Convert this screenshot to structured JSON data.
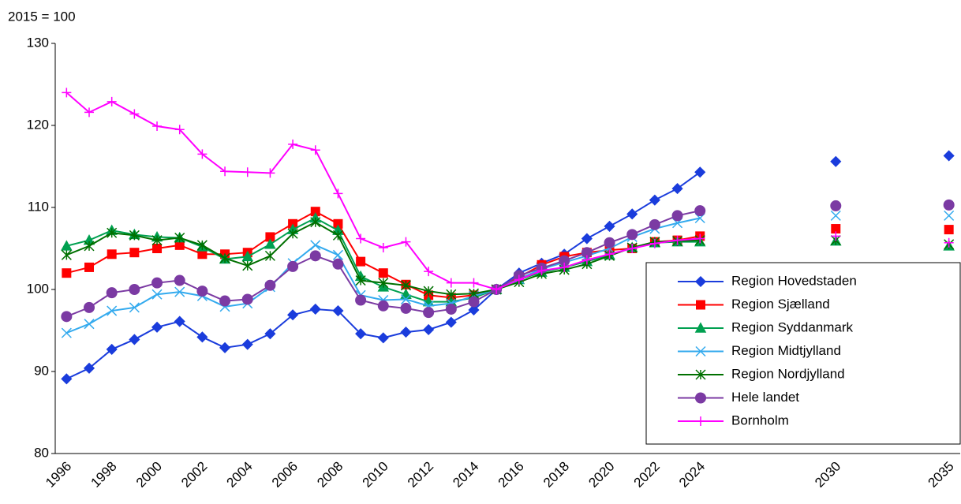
{
  "chart_data": {
    "type": "line",
    "ylabel": "2015 = 100",
    "categories": [
      "1996",
      null,
      "1998",
      null,
      "2000",
      null,
      "2002",
      null,
      "2004",
      null,
      "2006",
      null,
      "2008",
      null,
      "2010",
      null,
      "2012",
      null,
      "2014",
      null,
      "2016",
      null,
      "2018",
      null,
      "2020",
      null,
      "2022",
      null,
      "2024",
      null,
      null,
      null,
      null,
      null,
      "2030",
      null,
      null,
      null,
      null,
      "2035"
    ],
    "ylim": [
      80,
      130
    ],
    "yticks": [
      80,
      90,
      100,
      110,
      120,
      130
    ],
    "grid": false,
    "legend": "lower right",
    "series": [
      {
        "name": "Region Hovedstaden",
        "color": "#1a3cdc",
        "marker": "diamond",
        "values": [
          89.1,
          90.4,
          92.7,
          93.9,
          95.4,
          96.1,
          94.2,
          92.9,
          93.3,
          94.6,
          96.9,
          97.6,
          97.4,
          94.6,
          94.1,
          94.8,
          95.1,
          96.0,
          97.5,
          100,
          102.0,
          103.2,
          104.3,
          106.2,
          107.7,
          109.2,
          110.9,
          112.3,
          114.3,
          null,
          null,
          null,
          null,
          null,
          115.6,
          null,
          null,
          null,
          null,
          116.3
        ]
      },
      {
        "name": "Region Sjælland",
        "color": "#ff0000",
        "marker": "square",
        "values": [
          102.0,
          102.7,
          104.3,
          104.5,
          105.0,
          105.4,
          104.3,
          104.3,
          104.5,
          106.4,
          108.0,
          109.5,
          108.0,
          103.4,
          102.0,
          100.6,
          99.3,
          99.0,
          99.3,
          100,
          101.5,
          103.0,
          104.0,
          104.5,
          104.8,
          105.0,
          105.8,
          106.0,
          106.5,
          null,
          null,
          null,
          null,
          null,
          107.4,
          null,
          null,
          null,
          null,
          107.3
        ]
      },
      {
        "name": "Region Syddanmark",
        "color": "#00a050",
        "marker": "triangle",
        "values": [
          105.3,
          106.0,
          107.2,
          106.7,
          106.4,
          106.3,
          105.2,
          103.7,
          104.0,
          105.5,
          107.3,
          108.7,
          107.2,
          101.6,
          100.3,
          99.4,
          98.5,
          98.5,
          99.0,
          100,
          101.2,
          102.1,
          102.7,
          103.4,
          104.2,
          105.1,
          105.7,
          105.8,
          105.8,
          null,
          null,
          null,
          null,
          null,
          105.9,
          null,
          null,
          null,
          null,
          105.3
        ]
      },
      {
        "name": "Region Midtjylland",
        "color": "#33aaee",
        "marker": "x",
        "values": [
          94.7,
          95.8,
          97.4,
          97.8,
          99.4,
          99.7,
          99.2,
          97.9,
          98.3,
          100.3,
          103.2,
          105.4,
          104.2,
          99.3,
          98.7,
          98.8,
          98.0,
          98.3,
          99.2,
          100,
          101.3,
          102.5,
          103.3,
          104.1,
          105.0,
          106.4,
          107.4,
          108.1,
          108.7,
          null,
          null,
          null,
          null,
          null,
          109.0,
          null,
          null,
          null,
          null,
          109.0
        ]
      },
      {
        "name": "Region Nordjylland",
        "color": "#007000",
        "marker": "star",
        "values": [
          104.2,
          105.3,
          106.9,
          106.6,
          106.0,
          106.3,
          105.4,
          103.8,
          102.9,
          104.1,
          106.8,
          108.2,
          106.6,
          101.1,
          100.8,
          100.5,
          99.8,
          99.4,
          99.5,
          100,
          100.9,
          101.9,
          102.4,
          103.1,
          104.1,
          105.1,
          105.8,
          105.9,
          106.0,
          null,
          null,
          null,
          null,
          null,
          106.0,
          null,
          null,
          null,
          null,
          105.5
        ]
      },
      {
        "name": "Hele landet",
        "color": "#7b3aa3",
        "marker": "circle",
        "values": [
          96.7,
          97.8,
          99.6,
          100.0,
          100.8,
          101.1,
          99.8,
          98.6,
          98.8,
          100.5,
          102.8,
          104.1,
          103.1,
          98.7,
          98.0,
          97.7,
          97.2,
          97.6,
          98.5,
          100,
          101.7,
          102.6,
          103.5,
          104.5,
          105.7,
          106.7,
          107.9,
          109.0,
          109.6,
          null,
          null,
          null,
          null,
          null,
          110.2,
          null,
          null,
          null,
          null,
          110.3
        ]
      },
      {
        "name": "Bornholm",
        "color": "#ff00ff",
        "marker": "plus",
        "values": [
          124.0,
          121.6,
          122.9,
          121.4,
          119.9,
          119.5,
          116.5,
          114.4,
          114.3,
          114.2,
          117.7,
          117.0,
          111.7,
          106.2,
          105.1,
          105.8,
          102.2,
          100.8,
          100.8,
          100,
          101.2,
          102.3,
          102.7,
          103.6,
          104.3,
          105.0,
          105.6,
          106.0,
          106.2,
          null,
          null,
          null,
          null,
          null,
          106.5,
          null,
          null,
          null,
          null,
          105.7
        ]
      }
    ]
  }
}
